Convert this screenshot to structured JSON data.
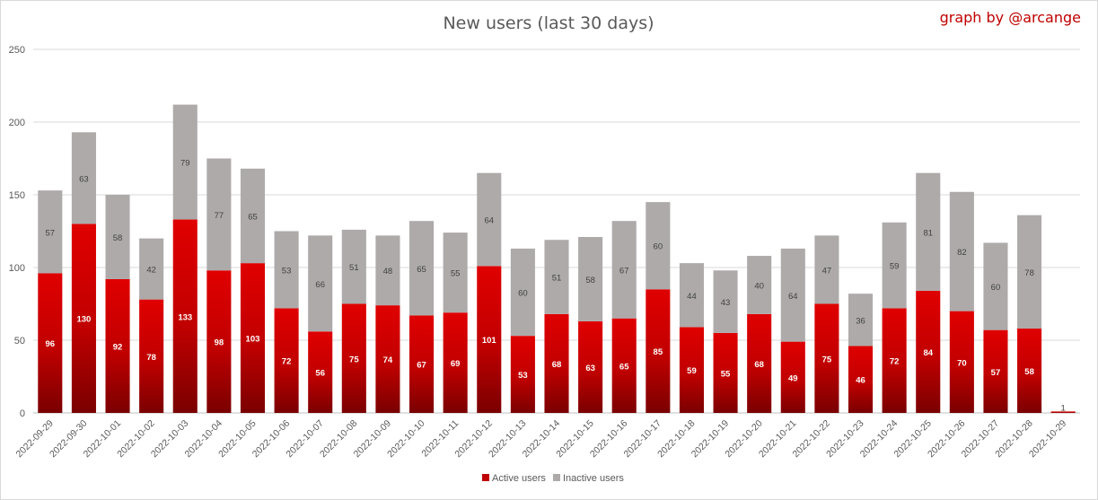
{
  "chart_data": {
    "type": "bar",
    "stacked": true,
    "title": "New users (last 30 days)",
    "credit": "graph by @arcange",
    "xlabel": "",
    "ylabel": "",
    "ylim": [
      0,
      250
    ],
    "yticks": [
      0,
      50,
      100,
      150,
      200,
      250
    ],
    "grid": true,
    "legend": "bottom",
    "categories": [
      "2022-09-29",
      "2022-09-30",
      "2022-10-01",
      "2022-10-02",
      "2022-10-03",
      "2022-10-04",
      "2022-10-05",
      "2022-10-06",
      "2022-10-07",
      "2022-10-08",
      "2022-10-09",
      "2022-10-10",
      "2022-10-11",
      "2022-10-12",
      "2022-10-13",
      "2022-10-14",
      "2022-10-15",
      "2022-10-16",
      "2022-10-17",
      "2022-10-18",
      "2022-10-19",
      "2022-10-20",
      "2022-10-21",
      "2022-10-22",
      "2022-10-23",
      "2022-10-24",
      "2022-10-25",
      "2022-10-26",
      "2022-10-27",
      "2022-10-28",
      "2022-10-29"
    ],
    "series": [
      {
        "name": "Active users",
        "color": "#c00000",
        "values": [
          96,
          130,
          92,
          78,
          133,
          98,
          103,
          72,
          56,
          75,
          74,
          67,
          69,
          101,
          53,
          68,
          63,
          65,
          85,
          59,
          55,
          68,
          49,
          75,
          46,
          72,
          84,
          70,
          57,
          58,
          1
        ]
      },
      {
        "name": "Inactive users",
        "color": "#aeaaaa",
        "values": [
          57,
          63,
          58,
          42,
          79,
          77,
          65,
          53,
          66,
          51,
          48,
          65,
          55,
          64,
          60,
          51,
          58,
          67,
          60,
          44,
          43,
          40,
          64,
          47,
          36,
          59,
          81,
          82,
          60,
          78,
          0
        ]
      }
    ]
  }
}
